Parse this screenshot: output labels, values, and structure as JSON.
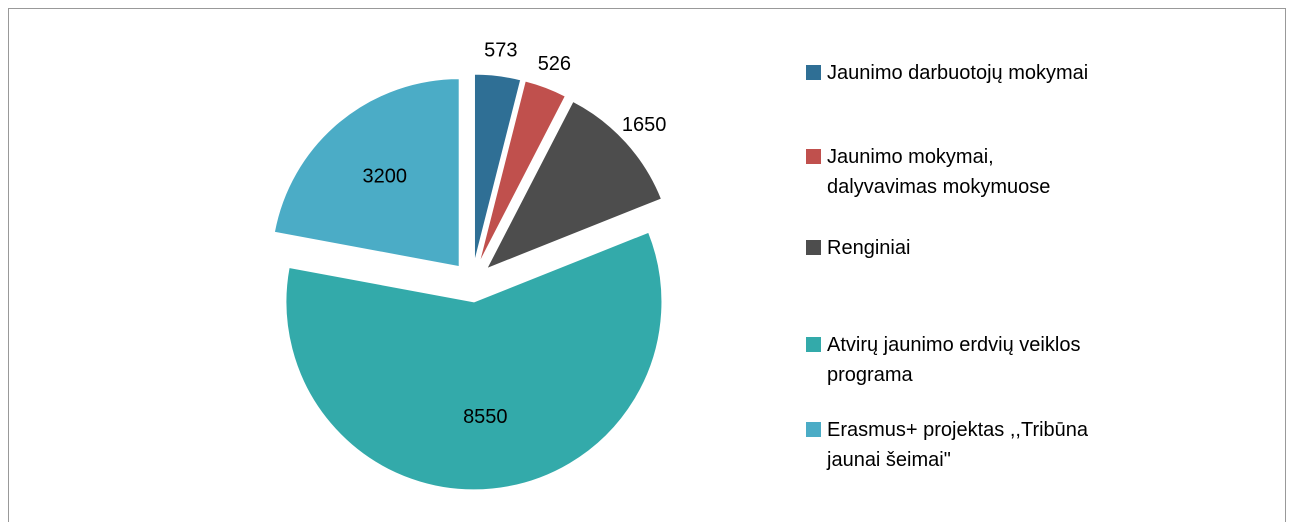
{
  "chart_data": {
    "type": "pie",
    "categories": [
      "Jaunimo darbuotojų mokymai",
      "Jaunimo mokymai, dalyvavimas mokymuose",
      "Renginiai",
      "Atvirų jaunimo erdvių veiklos programa",
      "Erasmus+ projektas ,,Tribūna jaunai šeimai\""
    ],
    "values": [
      573,
      526,
      1650,
      8550,
      3200
    ],
    "colors": [
      "#2f6f95",
      "#c0504d",
      "#4d4d4d",
      "#33aaaa",
      "#4bacc6"
    ],
    "legend": "right"
  }
}
